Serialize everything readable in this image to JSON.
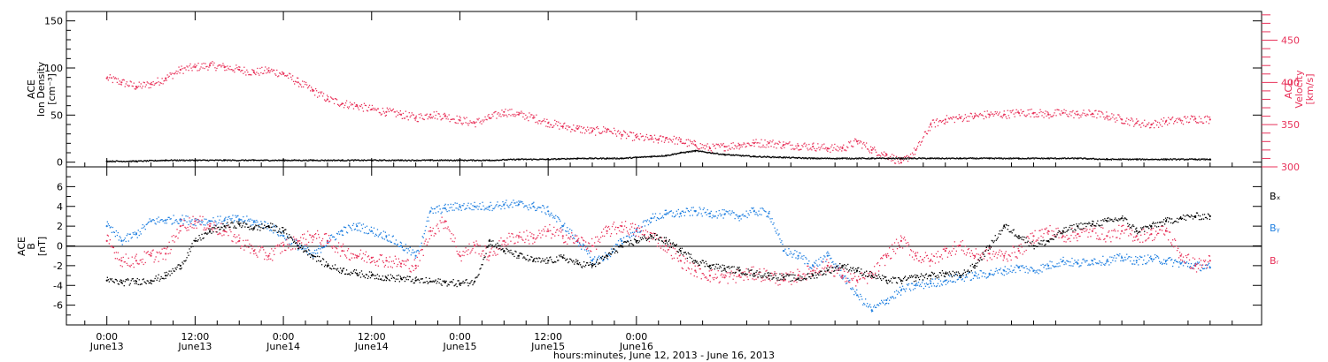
{
  "chart_data": [
    {
      "type": "scatter",
      "panel": "top",
      "ylabel_left": [
        "ACE",
        "Ion Density",
        "[cm⁻³]"
      ],
      "ylabel_right": [
        "ACE",
        "Velocity",
        "[km/s]"
      ],
      "ylim_left": [
        -5,
        160
      ],
      "ylim_right": [
        300,
        484
      ],
      "yticks_left": [
        0,
        50,
        100,
        150
      ],
      "yticks_right": [
        300,
        350,
        400,
        450
      ],
      "colors": {
        "density": "#000000",
        "velocity": "#e8325a"
      },
      "series": [
        {
          "axis": "left",
          "color": "#000000",
          "t_hours": [
            0,
            4,
            8,
            12,
            16,
            20,
            24,
            28,
            32,
            36,
            40,
            44,
            48,
            52,
            56,
            60,
            64,
            68,
            70,
            72,
            74,
            76,
            78,
            80,
            84,
            88,
            92,
            96,
            100,
            104,
            108,
            112,
            116,
            120,
            124,
            128,
            132,
            136,
            140,
            144,
            148,
            150
          ],
          "values": [
            1,
            1,
            2,
            2,
            2,
            2,
            2,
            2,
            2,
            2,
            2,
            2,
            2,
            2,
            3,
            3,
            4,
            4,
            4,
            5,
            6,
            7,
            10,
            12,
            8,
            6,
            5,
            4,
            4,
            4,
            4,
            4,
            4,
            4,
            4,
            4,
            4,
            3,
            3,
            3,
            3,
            3
          ]
        },
        {
          "axis": "right",
          "color": "#e8325a",
          "t_hours": [
            0,
            2,
            4,
            6,
            8,
            10,
            12,
            14,
            16,
            18,
            20,
            22,
            24,
            26,
            28,
            30,
            32,
            34,
            36,
            38,
            40,
            42,
            44,
            46,
            48,
            50,
            52,
            54,
            56,
            58,
            60,
            62,
            64,
            66,
            68,
            70,
            72,
            74,
            75,
            76,
            78,
            80,
            82,
            84,
            86,
            88,
            90,
            92,
            94,
            96,
            98,
            100,
            102,
            104,
            106,
            108,
            110,
            112,
            114,
            116,
            118,
            120,
            122,
            124,
            126,
            128,
            130,
            132,
            134,
            136,
            138,
            140,
            142,
            144,
            146,
            148,
            150
          ],
          "values": [
            405,
            400,
            395,
            398,
            405,
            415,
            418,
            420,
            418,
            415,
            412,
            414,
            410,
            400,
            390,
            380,
            375,
            372,
            368,
            365,
            362,
            358,
            362,
            360,
            355,
            352,
            358,
            365,
            362,
            358,
            352,
            348,
            345,
            342,
            344,
            338,
            335,
            333,
            332,
            334,
            330,
            326,
            322,
            324,
            326,
            328,
            328,
            326,
            325,
            324,
            322,
            322,
            330,
            320,
            314,
            305,
            320,
            350,
            356,
            358,
            360,
            362,
            362,
            364,
            364,
            362,
            364,
            362,
            363,
            360,
            356,
            352,
            350,
            354,
            355,
            357,
            356
          ]
        }
      ]
    },
    {
      "type": "scatter",
      "panel": "bottom",
      "ylabel_left": [
        "ACE",
        "B",
        "[nT]"
      ],
      "ylim": [
        -8,
        8
      ],
      "yticks": [
        -6,
        -4,
        -2,
        0,
        2,
        4,
        6
      ],
      "legend": [
        "Bₓ",
        "Bᵧ",
        "Bᵣ"
      ],
      "legend_placement": "right",
      "series": [
        {
          "name": "Bx",
          "color": "#000000",
          "t_hours": [
            0,
            2,
            4,
            6,
            8,
            10,
            12,
            14,
            16,
            18,
            20,
            22,
            24,
            26,
            28,
            30,
            32,
            34,
            36,
            38,
            40,
            42,
            44,
            46,
            48,
            50,
            52,
            54,
            56,
            58,
            60,
            62,
            64,
            66,
            68,
            70,
            72,
            74,
            76,
            78,
            80,
            82,
            84,
            86,
            88,
            90,
            92,
            94,
            96,
            98,
            100,
            102,
            104,
            106,
            108,
            110,
            112,
            114,
            116,
            118,
            120,
            122,
            124,
            126,
            128,
            130,
            132,
            134,
            136,
            138,
            140,
            142,
            144,
            146,
            148,
            150
          ],
          "values": [
            -3.5,
            -3.7,
            -3.6,
            -3.5,
            -3,
            -2,
            0.5,
            1.5,
            2,
            2.2,
            1.8,
            2,
            1.5,
            0,
            -1,
            -2,
            -2.5,
            -2.8,
            -3,
            -3.2,
            -3.3,
            -3.5,
            -3.6,
            -3.7,
            -3.8,
            -3.6,
            0.5,
            -0.5,
            -1,
            -1.5,
            -1.5,
            -1.2,
            -1.8,
            -2,
            -1,
            0,
            0.5,
            1,
            0.5,
            -0.5,
            -1.5,
            -2,
            -2.3,
            -2.5,
            -2.8,
            -3,
            -3.2,
            -3.3,
            -3,
            -2.5,
            -2,
            -2.5,
            -3,
            -3.5,
            -3.5,
            -3.2,
            -3,
            -2.8,
            -3,
            -2,
            0,
            2,
            1,
            0,
            0.5,
            1.5,
            2,
            2.2,
            2.5,
            2.8,
            1.5,
            2,
            2.5,
            2.8,
            3,
            3
          ]
        },
        {
          "name": "By",
          "color": "#1f7fe0",
          "t_hours": [
            0,
            2,
            4,
            6,
            8,
            10,
            12,
            14,
            16,
            18,
            20,
            22,
            24,
            26,
            28,
            30,
            32,
            34,
            36,
            38,
            40,
            42,
            44,
            46,
            48,
            50,
            52,
            54,
            56,
            58,
            60,
            62,
            64,
            66,
            68,
            70,
            72,
            74,
            76,
            78,
            80,
            82,
            84,
            86,
            88,
            90,
            92,
            94,
            96,
            98,
            100,
            102,
            104,
            106,
            108,
            110,
            112,
            114,
            116,
            118,
            120,
            122,
            124,
            126,
            128,
            130,
            132,
            134,
            136,
            138,
            140,
            142,
            144,
            146,
            148,
            150
          ],
          "values": [
            2,
            0.5,
            1.2,
            2.5,
            2.6,
            2.7,
            2.5,
            2.5,
            2.6,
            2.7,
            2.4,
            2,
            1,
            0,
            -1,
            0.5,
            1.5,
            2,
            1.5,
            1,
            0,
            -1,
            3.5,
            3.8,
            4,
            4,
            4,
            4.2,
            4.2,
            4,
            3.5,
            2,
            0.5,
            -1.5,
            -1,
            0.5,
            1.5,
            2.8,
            3.2,
            3.3,
            3.5,
            3.3,
            3.2,
            3,
            3.5,
            3.3,
            -0.5,
            -1,
            -2,
            -1,
            -3,
            -5,
            -6.5,
            -5.5,
            -4.5,
            -4,
            -3.8,
            -3.5,
            -3.2,
            -3,
            -2.8,
            -2.5,
            -2.2,
            -2.5,
            -2,
            -1.5,
            -1.8,
            -1.5,
            -1.5,
            -1.2,
            -1.5,
            -1.3,
            -1.5,
            -1.8,
            -2,
            -2.2
          ]
        },
        {
          "name": "Bz",
          "color": "#e8325a",
          "t_hours": [
            0,
            2,
            4,
            6,
            8,
            10,
            12,
            14,
            16,
            18,
            20,
            22,
            24,
            26,
            28,
            30,
            32,
            34,
            36,
            38,
            40,
            42,
            44,
            46,
            48,
            50,
            52,
            54,
            56,
            58,
            60,
            62,
            64,
            66,
            68,
            70,
            72,
            74,
            76,
            78,
            80,
            82,
            84,
            86,
            88,
            90,
            92,
            94,
            96,
            98,
            100,
            102,
            104,
            106,
            108,
            110,
            112,
            114,
            116,
            118,
            120,
            122,
            124,
            126,
            128,
            130,
            132,
            134,
            136,
            138,
            140,
            142,
            144,
            146,
            148,
            150
          ],
          "values": [
            0.5,
            -1.5,
            -1.5,
            -1,
            -0.8,
            2,
            2.5,
            2,
            1.5,
            0.5,
            -0.5,
            -1,
            0,
            0.5,
            1,
            0.5,
            -0.5,
            -1,
            -1.2,
            -1.5,
            -1.8,
            -2,
            1.5,
            2.5,
            -1,
            0,
            -1,
            0.5,
            1,
            0.8,
            1.5,
            1,
            0.5,
            0,
            1.5,
            2,
            1.5,
            1,
            0,
            -1.5,
            -2.5,
            -3,
            -3.2,
            -3,
            -2.8,
            -3,
            -3.5,
            -3,
            -2.5,
            -2,
            -3,
            -3.5,
            -3,
            -1,
            0.5,
            -1,
            -1.5,
            -0.5,
            0,
            -1,
            -0.8,
            -1,
            -0.5,
            1,
            1.5,
            1,
            1.2,
            1.5,
            1,
            1.5,
            1,
            1.2,
            1.5,
            -1,
            -2,
            -1.5
          ]
        }
      ]
    }
  ],
  "x_axis": {
    "t_range_hours": [
      -5.5,
      157
    ],
    "ticks": [
      {
        "t": 0,
        "time": "0:00",
        "date": "June13"
      },
      {
        "t": 12,
        "time": "12:00",
        "date": "June13"
      },
      {
        "t": 24,
        "time": "0:00",
        "date": "June14"
      },
      {
        "t": 36,
        "time": "12:00",
        "date": "June14"
      },
      {
        "t": 48,
        "time": "0:00",
        "date": "June15"
      },
      {
        "t": 60,
        "time": "12:00",
        "date": "June15"
      },
      {
        "t": 72,
        "time": "0:00",
        "date": "June16"
      }
    ],
    "xlabel": "hours:minutes, June 12, 2013 - June 16, 2013"
  }
}
